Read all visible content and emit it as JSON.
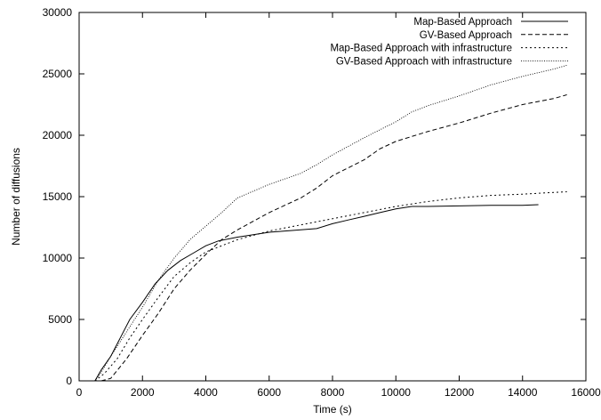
{
  "chart_data": {
    "type": "line",
    "title": "",
    "xlabel": "Time (s)",
    "ylabel": "Number of diffusions",
    "xlim": [
      0,
      16000
    ],
    "ylim": [
      0,
      30000
    ],
    "xticks": [
      0,
      2000,
      4000,
      6000,
      8000,
      10000,
      12000,
      14000,
      16000
    ],
    "yticks": [
      0,
      5000,
      10000,
      15000,
      20000,
      25000,
      30000
    ],
    "grid": false,
    "legend_position": "top-right",
    "series": [
      {
        "name": "Map-Based Approach",
        "style": "solid",
        "color": "#000000",
        "x": [
          500,
          700,
          1000,
          1300,
          1600,
          2000,
          2400,
          2800,
          3200,
          3600,
          4000,
          4400,
          5000,
          5500,
          6000,
          6500,
          7000,
          7500,
          8000,
          8500,
          9000,
          9500,
          10000,
          10500,
          11000,
          12000,
          13000,
          14000,
          14500
        ],
        "y": [
          0,
          900,
          2000,
          3500,
          5000,
          6400,
          7900,
          9000,
          9800,
          10400,
          11000,
          11400,
          11700,
          11900,
          12100,
          12200,
          12300,
          12400,
          12800,
          13100,
          13400,
          13700,
          14000,
          14200,
          14200,
          14250,
          14300,
          14300,
          14350
        ]
      },
      {
        "name": "GV-Based Approach",
        "style": "dashed",
        "color": "#000000",
        "x": [
          700,
          1000,
          1500,
          2000,
          2500,
          3000,
          3500,
          4000,
          4500,
          5000,
          6000,
          7000,
          7500,
          8000,
          9000,
          9500,
          10000,
          11000,
          12000,
          13000,
          14000,
          15000,
          15400
        ],
        "y": [
          0,
          200,
          1800,
          3700,
          5500,
          7500,
          9000,
          10300,
          11500,
          12300,
          13700,
          14900,
          15700,
          16700,
          18000,
          18900,
          19500,
          20300,
          21000,
          21800,
          22500,
          23000,
          23300
        ]
      },
      {
        "name": "Map-Based Approach with infrastructure",
        "style": "dotted",
        "color": "#000000",
        "x": [
          500,
          800,
          1200,
          1600,
          2000,
          2500,
          3000,
          3500,
          4000,
          4500,
          5000,
          6000,
          7000,
          8000,
          9000,
          10000,
          11000,
          12000,
          13000,
          14000,
          15000,
          15400
        ],
        "y": [
          0,
          600,
          1800,
          3500,
          5000,
          6800,
          8500,
          9600,
          10500,
          11000,
          11500,
          12200,
          12700,
          13200,
          13700,
          14200,
          14600,
          14900,
          15100,
          15200,
          15350,
          15400
        ]
      },
      {
        "name": "GV-Based Approach with infrastructure",
        "style": "fine-dotted",
        "color": "#000000",
        "x": [
          500,
          700,
          1000,
          1500,
          2000,
          2500,
          3000,
          3500,
          4000,
          4500,
          5000,
          6000,
          7000,
          7500,
          8000,
          9000,
          10000,
          10500,
          11000,
          12000,
          13000,
          14000,
          15000,
          15400
        ],
        "y": [
          0,
          700,
          2000,
          4000,
          6000,
          8200,
          10000,
          11500,
          12600,
          13700,
          14900,
          16000,
          16900,
          17600,
          18400,
          19800,
          21100,
          21900,
          22400,
          23200,
          24100,
          24800,
          25400,
          25700
        ]
      }
    ]
  }
}
